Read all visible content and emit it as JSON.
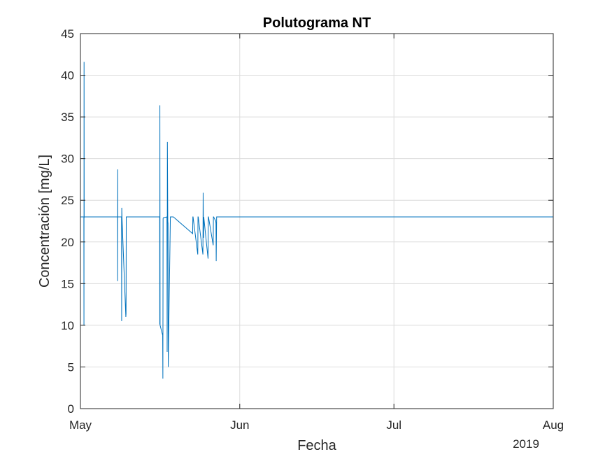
{
  "chart_data": {
    "type": "line",
    "title": "Polutograma NT",
    "xlabel": "Fecha",
    "ylabel": "Concentración [mg/L]",
    "x_year_label": "2019",
    "x_ticks": [
      "May",
      "Jun",
      "Jul",
      "Aug"
    ],
    "x_tick_dates": [
      "2019-05-01",
      "2019-06-01",
      "2019-07-01",
      "2019-08-01"
    ],
    "xlim": [
      "2019-05-01",
      "2019-08-01"
    ],
    "ylim": [
      0,
      45
    ],
    "y_ticks": [
      0,
      5,
      10,
      15,
      20,
      25,
      30,
      35,
      40,
      45
    ],
    "grid": true,
    "line_color": "#0072BD",
    "series": [
      {
        "x": [
          "2019-05-01",
          "2019-05-01T16:00",
          "2019-05-01T16:30",
          "2019-05-01T17:00",
          "2019-05-01T17:30",
          "2019-05-01T18:00",
          "2019-05-02",
          "2019-05-03",
          "2019-05-03T04:00",
          "2019-05-03T05:00",
          "2019-05-03T06:00",
          "2019-05-08T05:00",
          "2019-05-08T05:30",
          "2019-05-08T06:00",
          "2019-05-08T06:30",
          "2019-05-09",
          "2019-05-09T00:30",
          "2019-05-09T01:00",
          "2019-05-09T02:00",
          "2019-05-09T20:00",
          "2019-05-09T21:00",
          "2019-05-09T22:00",
          "2019-05-10",
          "2019-05-16T10:00",
          "2019-05-16T10:30",
          "2019-05-16T11:00",
          "2019-05-16T12:00",
          "2019-05-17T00:00",
          "2019-05-17T01:00",
          "2019-05-17T02:00",
          "2019-05-17T03:00",
          "2019-05-17T20:00",
          "2019-05-17T21:00",
          "2019-05-17T22:00",
          "2019-05-18T00:00",
          "2019-05-18T01:00",
          "2019-05-18T02:00",
          "2019-05-18T12:00",
          "2019-05-18T12:30",
          "2019-05-18T13:00",
          "2019-05-19T00:00",
          "2019-05-19T01:00",
          "2019-05-19T02:00",
          "2019-05-22T20:00",
          "2019-05-22T21:00",
          "2019-05-22T22:00",
          "2019-05-23T20:00",
          "2019-05-23T21:00",
          "2019-05-23T22:00",
          "2019-05-24T20:00",
          "2019-05-24T21:00",
          "2019-05-24T22:00",
          "2019-05-24T23:00",
          "2019-05-25T00:00",
          "2019-05-25T20:00",
          "2019-05-25T21:00",
          "2019-05-25T22:00",
          "2019-05-26T20:00",
          "2019-05-26T21:00",
          "2019-05-26T22:00",
          "2019-05-27T08:00",
          "2019-05-27T09:00",
          "2019-05-27T10:00",
          "2019-05-27T12:00",
          "2019-05-28T00:00",
          "2019-05-28T01:00",
          "2019-05-28T02:00",
          "2019-08-01"
        ],
        "y": [
          23.0,
          23.0,
          10.0,
          41.6,
          22.9,
          23.0,
          23.0,
          23.0,
          23.0,
          23.0,
          23.0,
          23.0,
          15.3,
          28.7,
          23.0,
          23.0,
          10.5,
          24.1,
          23.0,
          11.0,
          11.4,
          23.0,
          23.0,
          23.0,
          10.1,
          36.4,
          10.0,
          8.8,
          3.6,
          22.8,
          22.9,
          23.0,
          6.8,
          32.0,
          22.5,
          22.2,
          5.0,
          23.0,
          23.0,
          23.0,
          23.0,
          23.0,
          23.0,
          21.0,
          23.0,
          23.0,
          18.5,
          23.0,
          23.0,
          18.5,
          25.9,
          23.0,
          20.5,
          23.0,
          18.0,
          23.0,
          23.0,
          19.6,
          23.0,
          23.0,
          22.5,
          22.2,
          17.7,
          23.0,
          23.0,
          23.0,
          23.0,
          23.0
        ]
      }
    ]
  }
}
